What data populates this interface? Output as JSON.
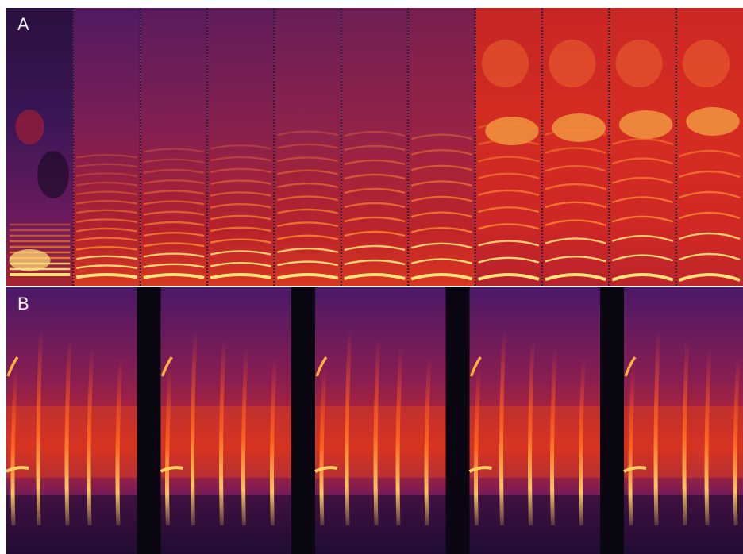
{
  "figure": {
    "panel_a": {
      "label": "A",
      "segment_count": 11
    },
    "panel_b": {
      "label": "B",
      "segment_count": 5
    }
  },
  "colors": {
    "background": "#ffffff",
    "spectrogram_low": "#1e0b2e",
    "spectrogram_mid": "#5a1a6e",
    "spectrogram_high": "#d4202a",
    "spectrogram_peak": "#ffe070",
    "separator_dark": "#0a0612",
    "label_text": "#f2f2f2"
  }
}
